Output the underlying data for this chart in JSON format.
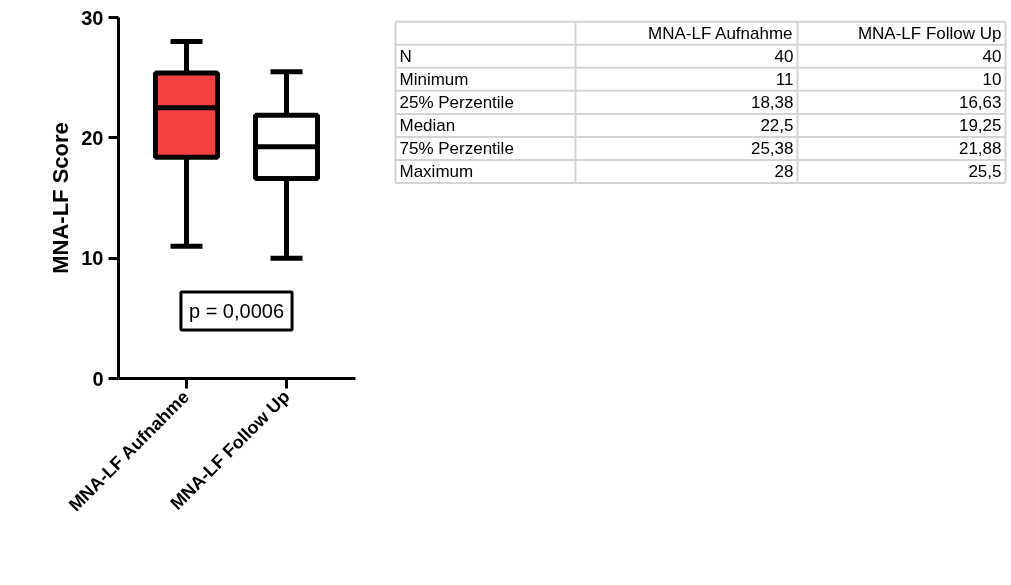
{
  "chart_data": [
    {
      "type": "box",
      "ylabel": "MNA-LF Score",
      "categories": [
        "MNA-LF Aufnahme",
        "MNA-LF Follow Up"
      ],
      "boxes": [
        {
          "low": 11,
          "q1": 18.38,
          "median": 22.5,
          "q3": 25.38,
          "high": 28
        },
        {
          "low": 10,
          "q1": 16.63,
          "median": 19.25,
          "q3": 21.88,
          "high": 25.5
        }
      ],
      "colors": [
        "#f44242",
        "#ffffff"
      ],
      "ylim": [
        0,
        30
      ],
      "yticks": [
        0,
        10,
        20,
        30
      ],
      "grid": false,
      "annotations": [
        "p = 0,0006"
      ]
    },
    {
      "type": "other",
      "categories": [
        "MNA-LF Aufnahme",
        "MNA-LF Follow Up"
      ],
      "y_categories": [
        "N",
        "Minimum",
        "25% Perzentile",
        "Median",
        "75% Perzentile",
        "Maximum"
      ],
      "cell_labels": [
        [
          "40",
          "40"
        ],
        [
          "11",
          "10"
        ],
        [
          "18,38",
          "16,63"
        ],
        [
          "22,5",
          "19,25"
        ],
        [
          "25,38",
          "21,88"
        ],
        [
          "28",
          "25,5"
        ]
      ]
    }
  ]
}
